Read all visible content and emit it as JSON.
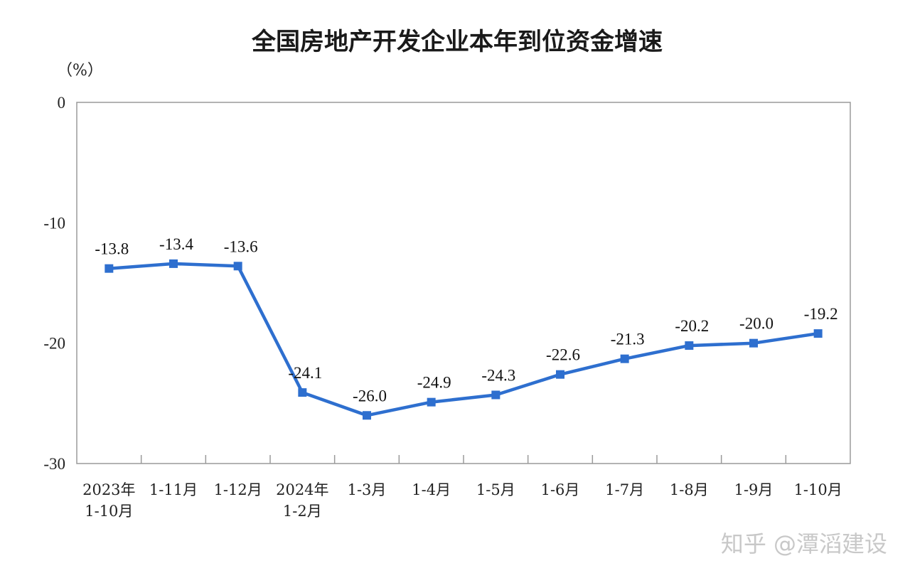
{
  "chart_data": {
    "type": "line",
    "title": "全国房地产开发企业本年到位资金增速",
    "unit_label": "（%）",
    "ylim": [
      -30,
      0
    ],
    "yticks": [
      0,
      -10,
      -20,
      -30
    ],
    "grid": false,
    "categories": [
      [
        "2023年",
        "1-10月"
      ],
      [
        "1-11月"
      ],
      [
        "1-12月"
      ],
      [
        "2024年",
        "1-2月"
      ],
      [
        "1-3月"
      ],
      [
        "1-4月"
      ],
      [
        "1-5月"
      ],
      [
        "1-6月"
      ],
      [
        "1-7月"
      ],
      [
        "1-8月"
      ],
      [
        "1-9月"
      ],
      [
        "1-10月"
      ]
    ],
    "series": [
      {
        "values": [
          -13.8,
          -13.4,
          -13.6,
          -24.1,
          -26.0,
          -24.9,
          -24.3,
          -22.6,
          -21.3,
          -20.2,
          -20.0,
          -19.2
        ],
        "labels": [
          "-13.8",
          "-13.4",
          "-13.6",
          "-24.1",
          "-26.0",
          "-24.9",
          "-24.3",
          "-22.6",
          "-21.3",
          "-20.2",
          "-20.0",
          "-19.2"
        ],
        "color": "#2e6fcf"
      }
    ]
  },
  "watermark": "知乎 @潭滔建设"
}
